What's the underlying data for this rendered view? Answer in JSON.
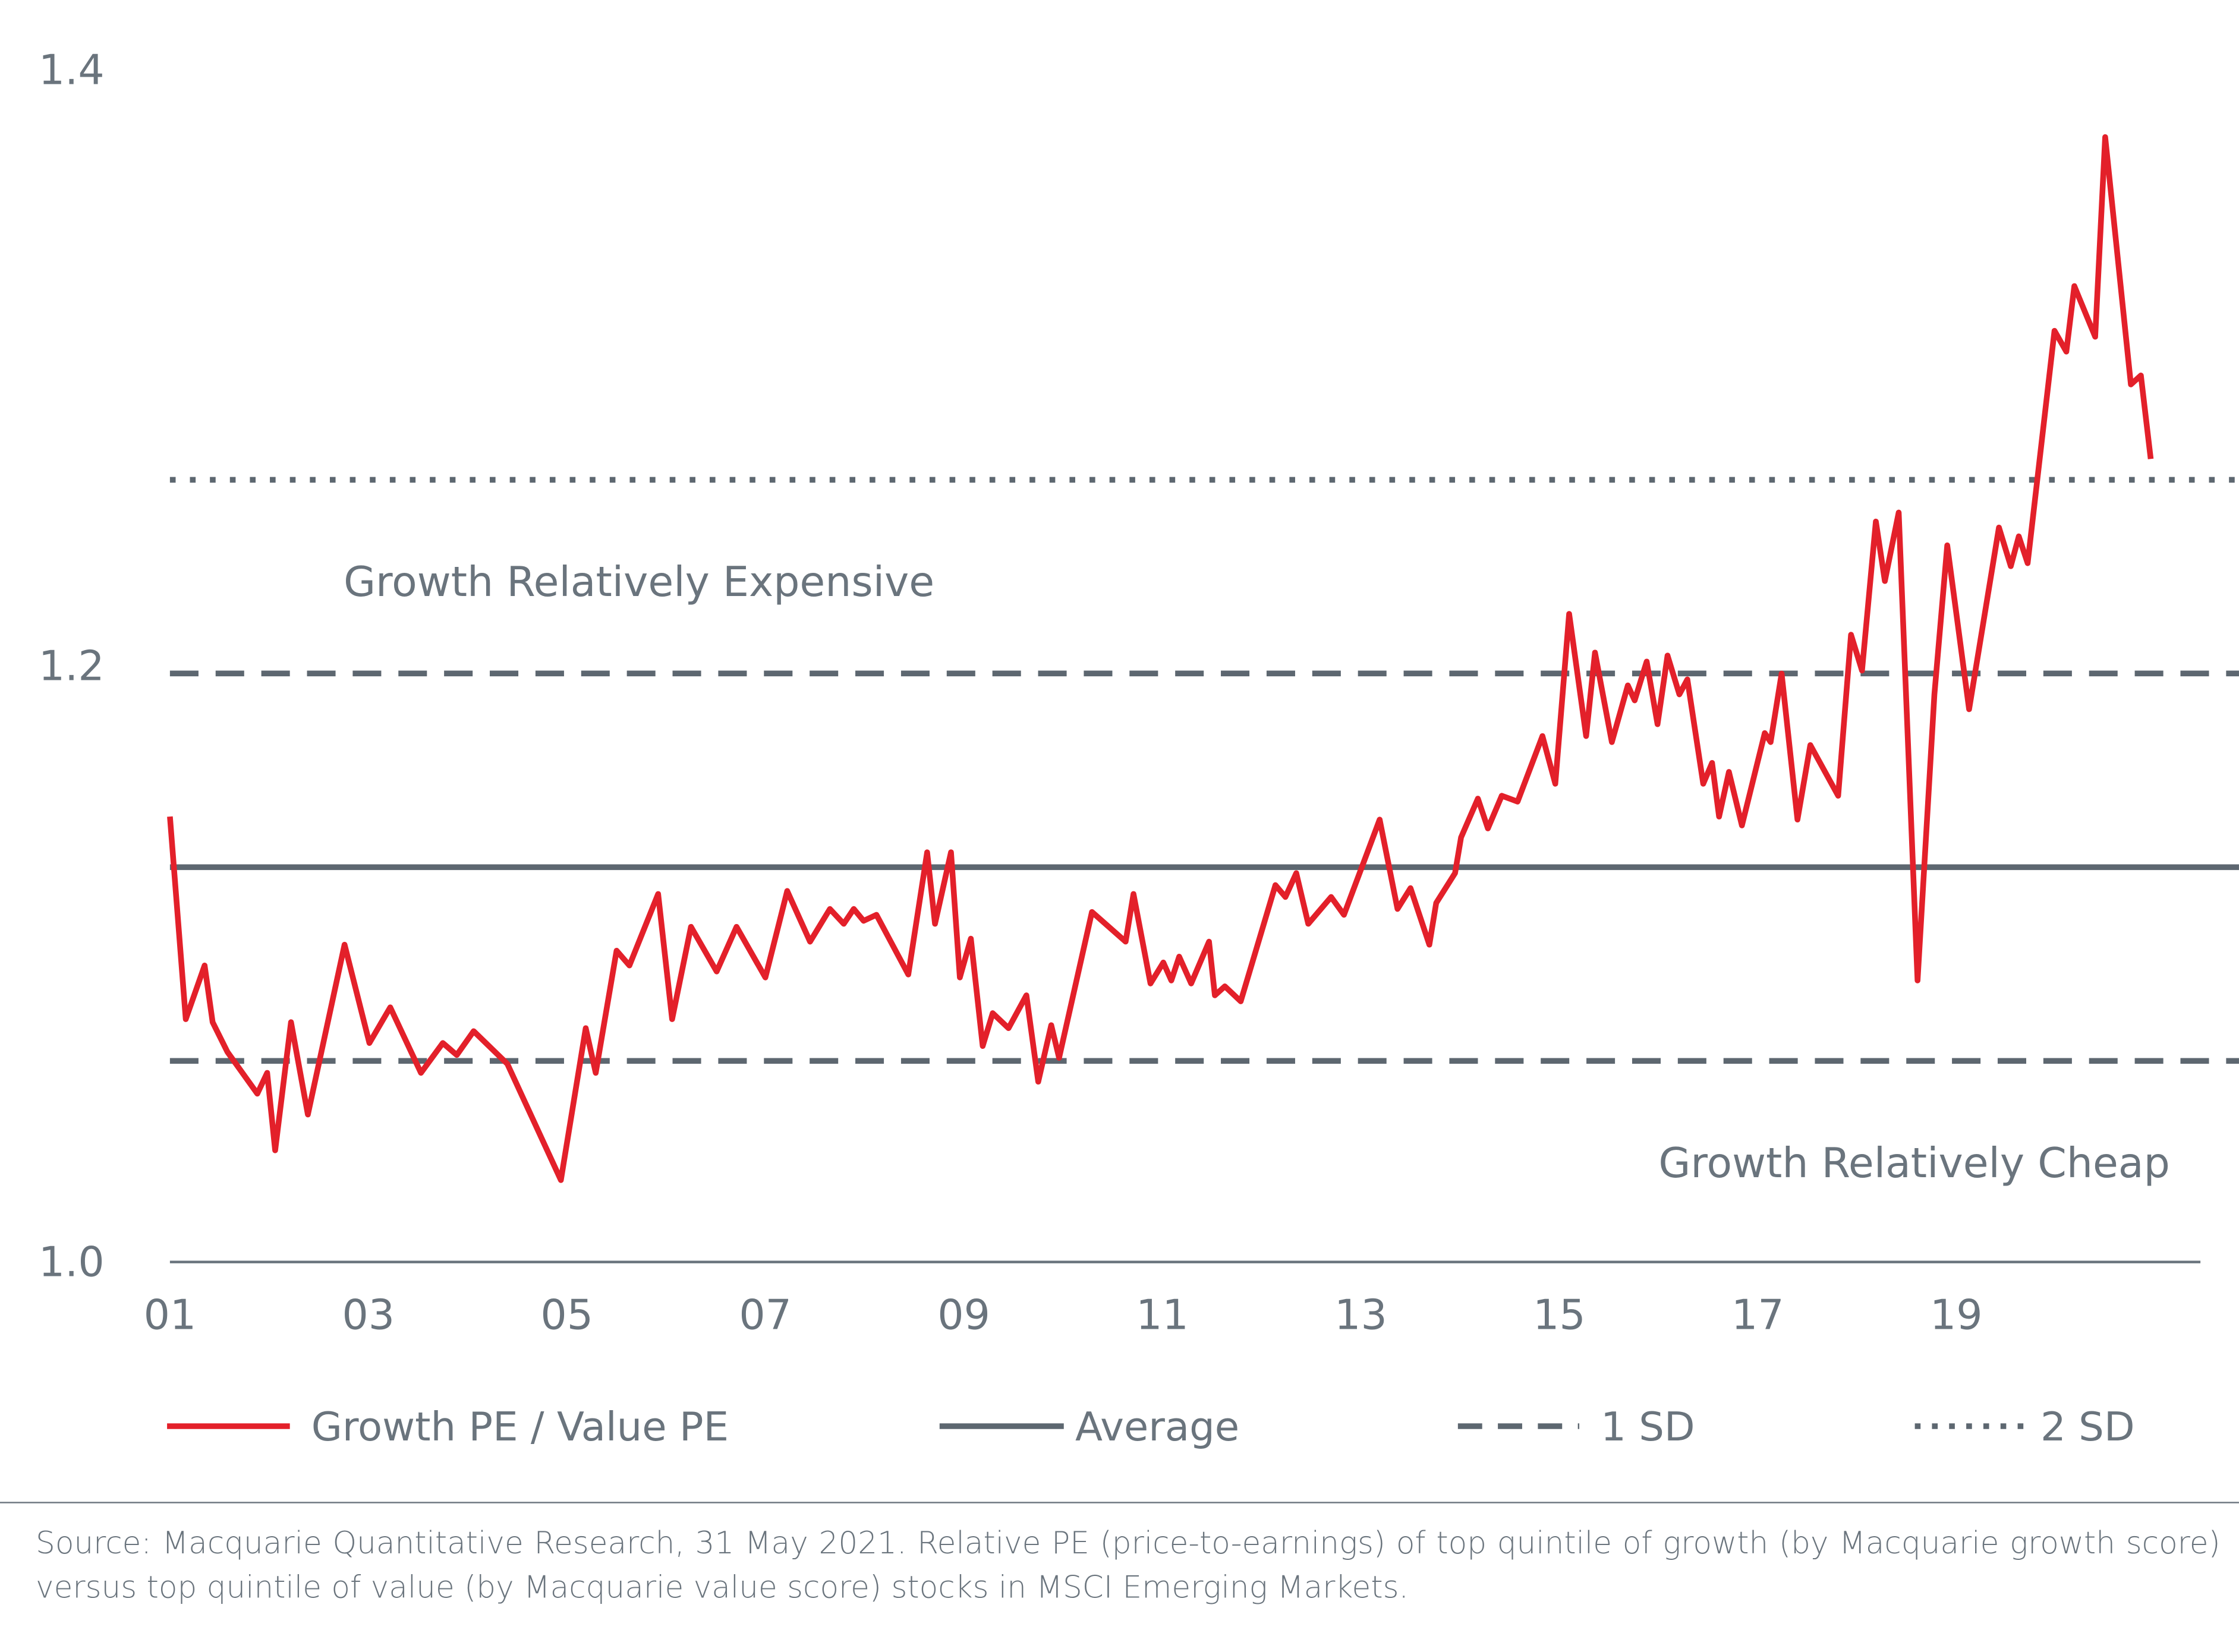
{
  "chart_data": {
    "type": "line",
    "title": "",
    "xlabel": "",
    "ylabel": "",
    "xlim": [
      2001,
      2021.85
    ],
    "ylim": [
      1.0,
      1.4
    ],
    "grid": false,
    "legend_position": "bottom",
    "y_ticks": [
      {
        "value": 1.0,
        "label": "1.0"
      },
      {
        "value": 1.2,
        "label": "1.2"
      },
      {
        "value": 1.4,
        "label": "1.4"
      }
    ],
    "x_ticks": [
      {
        "value": 2001,
        "label": "01"
      },
      {
        "value": 2003,
        "label": "03"
      },
      {
        "value": 2005,
        "label": "05"
      },
      {
        "value": 2007,
        "label": "07"
      },
      {
        "value": 2009,
        "label": "09"
      },
      {
        "value": 2011,
        "label": "11"
      },
      {
        "value": 2013,
        "label": "13"
      },
      {
        "value": 2015,
        "label": "15"
      },
      {
        "value": 2017,
        "label": "17"
      },
      {
        "value": 2019,
        "label": "19"
      }
    ],
    "annotations": [
      {
        "text": "Growth Relatively Expensive",
        "x": 2002.75,
        "y": 1.223
      },
      {
        "text": "Growth Relatively Cheap",
        "x": 2016.0,
        "y": 1.028
      }
    ],
    "series": [
      {
        "name": "Growth PE / Value PE",
        "color": "#e3202a",
        "style": "solid",
        "x": [
          2001.0,
          2001.16,
          2001.35,
          2001.43,
          2001.58,
          2001.88,
          2001.98,
          2002.06,
          2002.22,
          2002.39,
          2002.76,
          2003.01,
          2003.22,
          2003.53,
          2003.75,
          2003.89,
          2004.06,
          2004.4,
          2004.94,
          2005.19,
          2005.29,
          2005.5,
          2005.63,
          2005.92,
          2006.06,
          2006.25,
          2006.51,
          2006.71,
          2007.0,
          2007.22,
          2007.45,
          2007.65,
          2007.79,
          2007.89,
          2007.99,
          2008.12,
          2008.44,
          2008.63,
          2008.71,
          2008.87,
          2008.96,
          2009.07,
          2009.19,
          2009.29,
          2009.45,
          2009.63,
          2009.75,
          2009.88,
          2009.96,
          2010.29,
          2010.63,
          2010.71,
          2010.88,
          2011.01,
          2011.09,
          2011.17,
          2011.29,
          2011.47,
          2011.53,
          2011.63,
          2011.79,
          2012.14,
          2012.24,
          2012.35,
          2012.47,
          2012.7,
          2012.83,
          2013.19,
          2013.37,
          2013.5,
          2013.69,
          2013.76,
          2013.95,
          2014.01,
          2014.18,
          2014.28,
          2014.42,
          2014.58,
          2014.83,
          2014.96,
          2015.1,
          2015.27,
          2015.36,
          2015.53,
          2015.69,
          2015.76,
          2015.88,
          2015.99,
          2016.09,
          2016.21,
          2016.29,
          2016.45,
          2016.54,
          2016.61,
          2016.71,
          2016.84,
          2017.07,
          2017.13,
          2017.24,
          2017.4,
          2017.53,
          2017.81,
          2017.94,
          2018.05,
          2018.19,
          2018.28,
          2018.42,
          2018.61,
          2018.78,
          2018.91,
          2019.13,
          2019.43,
          2019.55,
          2019.63,
          2019.72,
          2019.99,
          2020.11,
          2020.19,
          2020.4,
          2020.5,
          2020.76,
          2020.86,
          2020.96
        ],
        "values": [
          1.149,
          1.081,
          1.099,
          1.08,
          1.07,
          1.056,
          1.063,
          1.037,
          1.08,
          1.049,
          1.106,
          1.073,
          1.085,
          1.063,
          1.073,
          1.069,
          1.077,
          1.066,
          1.027,
          1.078,
          1.063,
          1.104,
          1.099,
          1.123,
          1.081,
          1.112,
          1.097,
          1.112,
          1.095,
          1.124,
          1.107,
          1.118,
          1.113,
          1.118,
          1.114,
          1.116,
          1.096,
          1.137,
          1.113,
          1.137,
          1.095,
          1.108,
          1.072,
          1.083,
          1.078,
          1.089,
          1.06,
          1.079,
          1.068,
          1.117,
          1.107,
          1.123,
          1.093,
          1.1,
          1.094,
          1.102,
          1.093,
          1.107,
          1.089,
          1.092,
          1.087,
          1.126,
          1.122,
          1.13,
          1.113,
          1.122,
          1.116,
          1.148,
          1.118,
          1.125,
          1.106,
          1.12,
          1.13,
          1.142,
          1.155,
          1.145,
          1.156,
          1.154,
          1.176,
          1.16,
          1.217,
          1.176,
          1.204,
          1.174,
          1.193,
          1.188,
          1.201,
          1.18,
          1.203,
          1.19,
          1.195,
          1.16,
          1.167,
          1.149,
          1.164,
          1.146,
          1.177,
          1.174,
          1.197,
          1.148,
          1.173,
          1.156,
          1.21,
          1.198,
          1.248,
          1.228,
          1.251,
          1.094,
          1.19,
          1.24,
          1.185,
          1.246,
          1.233,
          1.243,
          1.234,
          1.312,
          1.305,
          1.327,
          1.31,
          1.377,
          1.294,
          1.297,
          1.269
        ]
      },
      {
        "name": "Average",
        "color": "#5d6770",
        "style": "solid",
        "value": 1.132
      },
      {
        "name": "1 SD",
        "color": "#5d6770",
        "style": "dashed",
        "values": [
          1.197,
          1.067
        ]
      },
      {
        "name": "2 SD",
        "color": "#5d6770",
        "style": "dotted",
        "value": 1.262
      }
    ]
  },
  "legend": {
    "items": [
      {
        "label": "Growth PE / Value PE"
      },
      {
        "label": "Average"
      },
      {
        "label": "1 SD"
      },
      {
        "label": "2 SD"
      }
    ]
  },
  "footer": {
    "source": "Source: Macquarie Quantitative Research, 31 May 2021. Relative PE (price-to-earnings) of top quintile of growth (by Macquarie growth score) versus top quintile of value (by Macquarie value score) stocks in MSCI Emerging Markets."
  }
}
